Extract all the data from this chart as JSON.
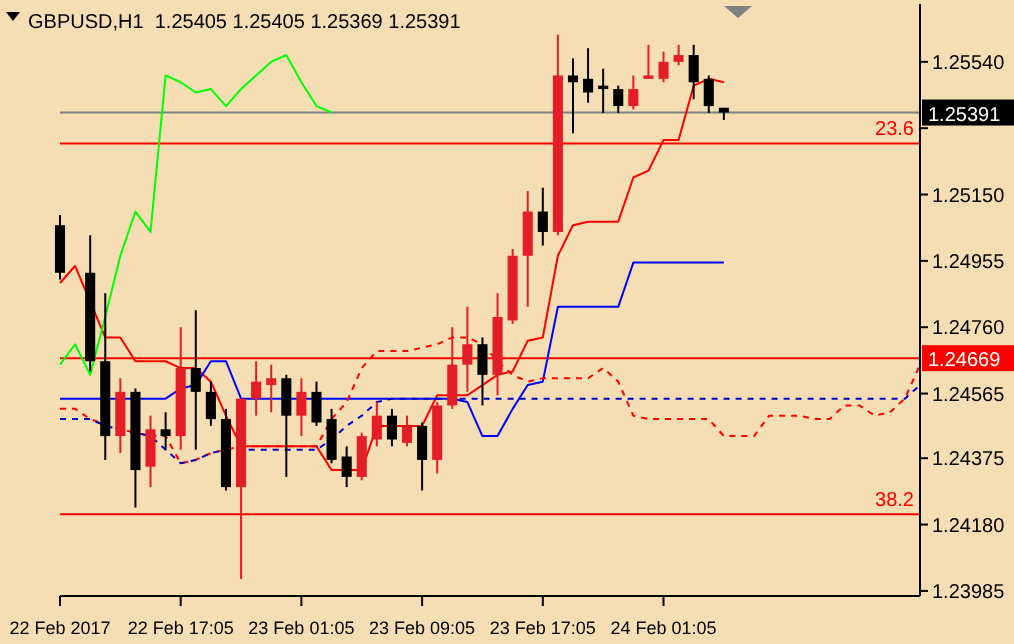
{
  "chart_data": {
    "type": "candlestick",
    "title": "GBPUSD,H1  1.25405 1.25405 1.25369 1.25391",
    "categories": [
      "22 Feb 2017",
      null,
      null,
      null,
      null,
      null,
      null,
      null,
      "22 Feb 17:05",
      null,
      null,
      null,
      null,
      null,
      null,
      null,
      "23 Feb 01:05",
      null,
      null,
      null,
      null,
      null,
      null,
      null,
      "23 Feb 09:05",
      null,
      null,
      null,
      null,
      null,
      null,
      null,
      "23 Feb 17:05",
      null,
      null,
      null,
      null,
      null,
      null,
      null,
      "24 Feb 01:05",
      null,
      null,
      null,
      null,
      null,
      null,
      null,
      null,
      null,
      null,
      null,
      null,
      null,
      null,
      null,
      null,
      null
    ],
    "ohlc": [
      [
        1.2506,
        1.2509,
        1.249,
        1.2492
      ],
      null,
      [
        1.2492,
        1.2503,
        1.2463,
        1.2466
      ],
      [
        1.2466,
        1.2486,
        1.2437,
        1.2444
      ],
      [
        1.2444,
        1.2461,
        1.2439,
        1.2457
      ],
      [
        1.2457,
        1.2458,
        1.2423,
        1.2434
      ],
      [
        1.2435,
        1.245,
        1.2429,
        1.2446
      ],
      [
        1.2446,
        1.2451,
        1.244,
        1.2444
      ],
      [
        1.2444,
        1.2476,
        1.244,
        1.2464
      ],
      [
        1.2464,
        1.2481,
        1.244,
        1.2457
      ],
      [
        1.2457,
        1.246,
        1.2447,
        1.2449
      ],
      [
        1.2449,
        1.2452,
        1.2428,
        1.2429
      ],
      [
        1.2429,
        1.2455,
        1.2402,
        1.2455
      ],
      [
        1.2455,
        1.2466,
        1.245,
        1.246
      ],
      [
        1.2459,
        1.2465,
        1.2451,
        1.2461
      ],
      [
        1.2461,
        1.2462,
        1.2432,
        1.245
      ],
      [
        1.245,
        1.2461,
        1.2444,
        1.2457
      ],
      [
        1.2457,
        1.246,
        1.2447,
        1.2448
      ],
      [
        1.2449,
        1.2452,
        1.2436,
        1.2437
      ],
      [
        1.2438,
        1.2441,
        1.2429,
        1.2432
      ],
      [
        1.2432,
        1.2445,
        1.2431,
        1.2444
      ],
      [
        1.2443,
        1.2454,
        1.2441,
        1.245
      ],
      [
        1.245,
        1.2452,
        1.2441,
        1.2443
      ],
      [
        1.2442,
        1.245,
        1.2441,
        1.2447
      ],
      [
        1.2447,
        1.2448,
        1.2428,
        1.2437
      ],
      [
        1.2437,
        1.2454,
        1.2433,
        1.2453
      ],
      [
        1.2453,
        1.2476,
        1.2452,
        1.2465
      ],
      [
        1.2465,
        1.2482,
        1.2457,
        1.2471
      ],
      [
        1.2471,
        1.2473,
        1.2453,
        1.2462
      ],
      [
        1.2462,
        1.2486,
        1.2456,
        1.2479
      ],
      [
        1.2478,
        1.2499,
        1.2477,
        1.2497
      ],
      [
        1.2497,
        1.2516,
        1.2482,
        1.251
      ],
      [
        1.251,
        1.2517,
        1.25,
        1.2504
      ],
      [
        1.2504,
        1.2562,
        1.2503,
        1.255
      ],
      [
        1.255,
        1.2555,
        1.2533,
        1.2548
      ],
      [
        1.2549,
        1.2558,
        1.2542,
        1.2545
      ],
      [
        1.2547,
        1.2552,
        1.2539,
        1.2546
      ],
      [
        1.2546,
        1.2547,
        1.2539,
        1.2541
      ],
      [
        1.2541,
        1.255,
        1.254,
        1.2546
      ],
      [
        1.2549,
        1.2559,
        1.2549,
        1.255
      ],
      [
        1.2549,
        1.2557,
        1.2548,
        1.2554
      ],
      [
        1.2554,
        1.2559,
        1.2553,
        1.2556
      ],
      [
        1.2556,
        1.2559,
        1.2543,
        1.2548
      ],
      [
        1.2549,
        1.255,
        1.2539,
        1.2541
      ],
      [
        1.25405,
        1.25405,
        1.25369,
        1.25391
      ],
      null,
      null,
      null,
      null,
      null,
      null,
      null,
      null,
      null,
      null,
      null,
      null,
      null
    ],
    "colors": [
      "#000000",
      null,
      "#000000",
      "#000000",
      "#e41e26",
      "#000000",
      "#e41e26",
      "#000000",
      "#e41e26",
      "#000000",
      "#000000",
      "#000000",
      "#e41e26",
      "#e41e26",
      "#e41e26",
      "#000000",
      "#e41e26",
      "#000000",
      "#000000",
      "#000000",
      "#e41e26",
      "#e41e26",
      "#000000",
      "#e41e26",
      "#000000",
      "#e41e26",
      "#e41e26",
      "#e41e26",
      "#000000",
      "#e41e26",
      "#e41e26",
      "#e41e26",
      "#000000",
      "#e41e26",
      "#000000",
      "#000000",
      "#000000",
      "#000000",
      "#e41e26",
      "#e41e26",
      "#e41e26",
      "#e41e26",
      "#000000",
      "#000000",
      "#000000",
      null,
      null,
      null,
      null,
      null,
      null,
      null,
      null,
      null,
      null,
      null,
      null,
      null
    ],
    "series": [
      {
        "type": "line",
        "color": "#ff0000",
        "line_style": "solid",
        "values": [
          1.2489,
          1.2494,
          null,
          1.2473,
          1.2473,
          1.2466,
          1.2466,
          1.2466,
          1.2464,
          1.2464,
          1.246,
          1.245,
          1.2441,
          1.2441,
          1.2441,
          1.2441,
          1.2441,
          1.2441,
          1.2434,
          1.2434,
          1.2434,
          1.2447,
          1.2447,
          1.2447,
          1.2447,
          1.2456,
          1.2456,
          1.2456,
          1.2459,
          1.2462,
          1.2463,
          1.2472,
          1.2473,
          1.2497,
          1.2506,
          1.2507,
          1.2507,
          1.2507,
          1.252,
          1.2522,
          1.2531,
          1.2531,
          1.2547,
          1.2549,
          1.2548,
          null,
          null,
          null,
          null,
          null,
          null,
          null,
          null,
          null,
          null,
          null,
          null,
          null
        ]
      },
      {
        "type": "line",
        "color": "#0000ff",
        "line_style": "solid",
        "values": [
          1.2455,
          1.2455,
          1.2455,
          1.2455,
          1.2455,
          1.2455,
          1.2455,
          1.2455,
          1.2458,
          1.2459,
          1.2466,
          1.2466,
          1.2455,
          1.2455,
          1.2455,
          1.2455,
          1.2455,
          1.2455,
          1.2455,
          1.2455,
          1.2455,
          1.2455,
          1.2455,
          1.2455,
          1.2455,
          1.2455,
          1.2455,
          1.2454,
          1.2444,
          1.2444,
          1.2452,
          1.2459,
          1.246,
          1.2482,
          1.2482,
          1.2482,
          1.2482,
          1.2482,
          1.2495,
          1.2495,
          1.2495,
          1.2495,
          1.2495,
          1.2495,
          1.2495,
          null,
          null,
          null,
          null,
          null,
          null,
          null,
          null,
          null,
          null,
          null,
          null,
          null
        ]
      },
      {
        "type": "line",
        "color": "#00ff00",
        "line_style": "solid",
        "values": [
          1.2465,
          1.2471,
          1.2462,
          1.2479,
          1.2497,
          1.251,
          1.2504,
          1.255,
          1.2548,
          1.2545,
          1.2546,
          1.2541,
          1.2546,
          1.255,
          1.2554,
          1.2556,
          1.2548,
          1.2541,
          1.25391,
          null,
          null,
          null,
          null,
          null,
          null,
          null,
          null,
          null,
          null,
          null,
          null,
          null,
          null,
          null,
          null,
          null,
          null,
          null,
          null,
          null,
          null,
          null,
          null,
          null,
          null,
          null,
          null,
          null,
          null,
          null,
          null,
          null,
          null,
          null,
          null,
          null,
          null,
          null
        ]
      },
      {
        "type": "line",
        "color": "#ff0000",
        "line_style": "dashed",
        "values": [
          1.2452,
          1.2452,
          1.2449,
          null,
          1.2446,
          1.2445,
          1.2444,
          1.2444,
          1.2436,
          1.2437,
          1.2439,
          1.244,
          1.2441,
          1.2441,
          1.2441,
          1.2441,
          1.2441,
          1.2441,
          1.2449,
          1.2454,
          1.2464,
          1.2469,
          1.2469,
          1.2469,
          1.247,
          1.2471,
          1.2473,
          1.2473,
          1.2471,
          1.2466,
          1.2462,
          1.246,
          1.2461,
          1.2461,
          1.2461,
          1.2461,
          1.2464,
          1.246,
          1.245,
          1.2449,
          1.2449,
          1.2449,
          1.2449,
          1.2449,
          1.2444,
          1.2444,
          1.2444,
          1.245,
          1.245,
          1.245,
          1.2449,
          1.2449,
          1.2453,
          1.2453,
          1.245,
          1.2451,
          1.2455,
          1.2465
        ]
      },
      {
        "type": "line",
        "color": "#0000c8",
        "line_style": "dashed",
        "values": [
          1.2449,
          1.2449,
          1.2449,
          1.2447,
          null,
          1.2445,
          1.2444,
          1.244,
          1.2436,
          1.2437,
          1.2439,
          1.244,
          1.244,
          1.244,
          1.244,
          1.244,
          1.244,
          1.244,
          1.2443,
          1.2447,
          1.245,
          1.2454,
          1.2455,
          1.2455,
          1.2455,
          1.2455,
          1.2455,
          1.2455,
          1.2455,
          1.2455,
          1.2455,
          1.2455,
          1.2455,
          1.2455,
          1.2455,
          1.2455,
          1.2455,
          1.2455,
          1.2455,
          1.2455,
          1.2455,
          1.2455,
          1.2455,
          1.2455,
          1.2455,
          1.2455,
          1.2455,
          1.2455,
          1.2455,
          1.2455,
          1.2455,
          1.2455,
          1.2455,
          1.2455,
          1.2455,
          1.2455,
          1.2455,
          1.2459
        ]
      }
    ],
    "ylim": [
      1.2397,
      1.2571
    ],
    "yticks": [
      {
        "value": 1.2554,
        "label": "1.25540"
      },
      {
        "value": 1.25345,
        "label": null
      },
      {
        "value": 1.2515,
        "label": "1.25150"
      },
      {
        "value": 1.24955,
        "label": "1.24955"
      },
      {
        "value": 1.2476,
        "label": "1.24760"
      },
      {
        "value": 1.24565,
        "label": "1.24565"
      },
      {
        "value": 1.24375,
        "label": "1.24375"
      },
      {
        "value": 1.2418,
        "label": "1.24180"
      },
      {
        "value": 1.23985,
        "label": "1.23985"
      }
    ],
    "ref_lines": [
      {
        "axis": "y",
        "value": 1.25391,
        "label": "1.25391",
        "color": "#808080"
      },
      {
        "axis": "y",
        "value": 1.24669,
        "label": "1.24669",
        "color": "#ff0000"
      },
      {
        "axis": "y",
        "value": 1.253,
        "color": "#ff0000"
      },
      {
        "axis": "y",
        "value": 1.2421,
        "color": "#ff0000"
      }
    ],
    "annotations": [
      {
        "text": "23.6",
        "y": 1.253
      },
      {
        "text": "38.2",
        "y": 1.2421
      }
    ],
    "marker": "none"
  }
}
